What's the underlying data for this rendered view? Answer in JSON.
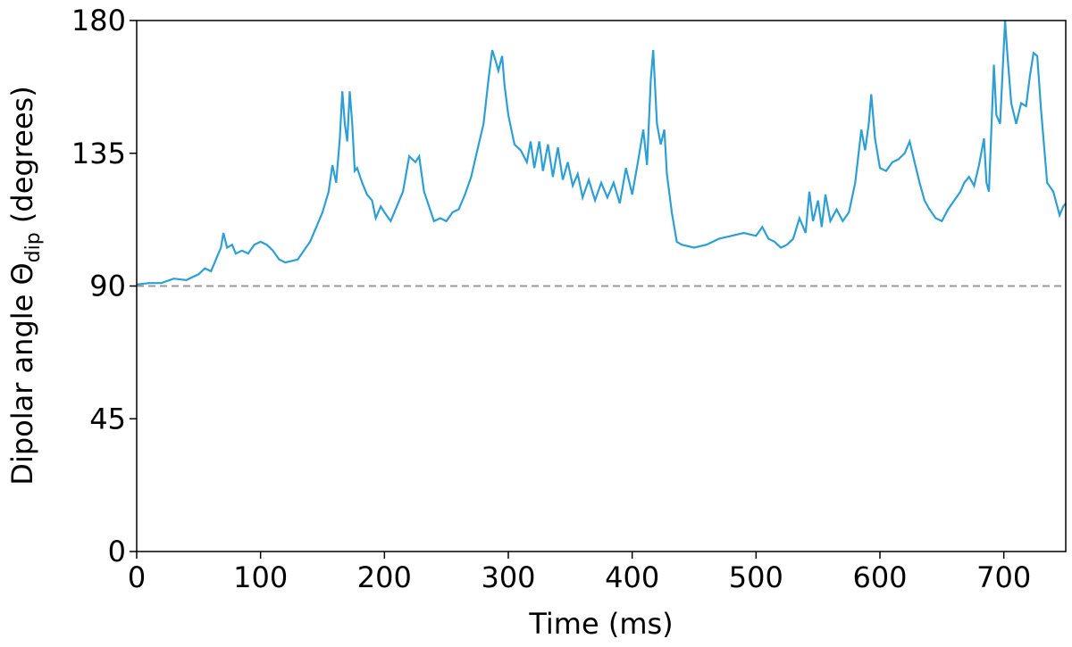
{
  "chart_data": {
    "type": "line",
    "xlabel": "Time (ms)",
    "ylabel": "Dipolar angle Θ",
    "ylabel_sub": "dip",
    "ylabel_end": " (degrees)",
    "x": [
      0,
      10,
      20,
      30,
      40,
      50,
      55,
      60,
      65,
      68,
      70,
      73,
      77,
      80,
      85,
      90,
      95,
      100,
      105,
      110,
      115,
      120,
      130,
      135,
      140,
      145,
      150,
      155,
      158,
      161,
      164,
      166,
      168,
      170,
      172,
      174,
      176,
      178,
      182,
      186,
      190,
      193,
      197,
      200,
      205,
      210,
      215,
      220,
      225,
      228,
      232,
      236,
      240,
      245,
      250,
      255,
      260,
      265,
      270,
      275,
      280,
      284,
      287,
      290,
      292,
      295,
      297,
      300,
      305,
      310,
      315,
      318,
      321,
      325,
      328,
      332,
      336,
      340,
      344,
      348,
      352,
      356,
      360,
      365,
      370,
      375,
      380,
      385,
      390,
      395,
      400,
      405,
      409,
      412,
      415,
      417,
      420,
      423,
      426,
      428,
      432,
      436,
      440,
      450,
      460,
      470,
      480,
      490,
      500,
      505,
      510,
      515,
      520,
      525,
      530,
      535,
      540,
      543,
      546,
      550,
      553,
      556,
      560,
      565,
      570,
      575,
      580,
      585,
      588,
      591,
      593,
      596,
      600,
      605,
      610,
      615,
      620,
      624,
      628,
      632,
      636,
      640,
      645,
      650,
      655,
      660,
      665,
      668,
      672,
      676,
      680,
      684,
      686,
      688,
      692,
      694,
      697,
      701,
      703,
      706,
      710,
      714,
      718,
      721,
      724,
      727,
      730,
      735,
      740,
      745,
      748,
      750
    ],
    "series": [
      {
        "color": "#2e9fd4",
        "values": [
          90.5,
          91,
          91,
          92.5,
          92,
          94,
          96,
          95,
          100,
          103,
          108,
          103,
          104,
          101,
          102,
          101,
          104,
          105,
          104,
          102,
          99,
          98,
          99,
          102,
          105,
          110,
          115,
          122,
          131,
          125,
          140,
          156,
          145,
          139,
          156,
          145,
          129,
          130,
          125,
          121,
          119,
          113,
          117,
          115,
          112,
          117,
          122,
          134,
          132,
          134,
          122,
          117,
          112,
          113,
          112,
          115,
          116,
          121,
          127,
          136,
          145,
          160,
          170,
          166,
          163,
          168,
          158,
          148,
          138,
          136,
          132,
          139,
          130,
          139,
          129,
          138,
          127,
          137,
          126,
          132,
          124,
          128,
          120,
          126,
          119,
          125,
          120,
          125,
          118,
          130,
          121,
          133,
          143,
          131,
          160,
          170,
          145,
          138,
          143,
          128,
          115,
          105,
          104,
          103,
          104,
          106,
          107,
          108,
          107,
          110,
          106,
          105,
          103,
          104,
          106,
          113,
          108,
          122,
          112,
          119,
          110,
          121,
          112,
          116,
          112,
          115,
          125,
          143,
          136,
          145,
          155,
          140,
          130,
          129,
          132,
          133,
          135,
          139,
          132,
          125,
          119,
          116,
          113,
          112,
          116,
          119,
          122,
          125,
          127,
          124,
          131,
          140,
          125,
          122,
          165,
          148,
          145,
          180,
          168,
          152,
          145,
          152,
          151,
          161,
          169,
          168,
          150,
          125,
          122,
          114,
          117,
          118
        ]
      }
    ],
    "reference_line": {
      "value": 90,
      "color": "#999999"
    },
    "xlim": [
      0,
      750
    ],
    "xticks": [
      0,
      100,
      200,
      300,
      400,
      500,
      600,
      700
    ],
    "ylim": [
      0,
      180
    ],
    "yticks": [
      0,
      45,
      90,
      135,
      180
    ]
  }
}
